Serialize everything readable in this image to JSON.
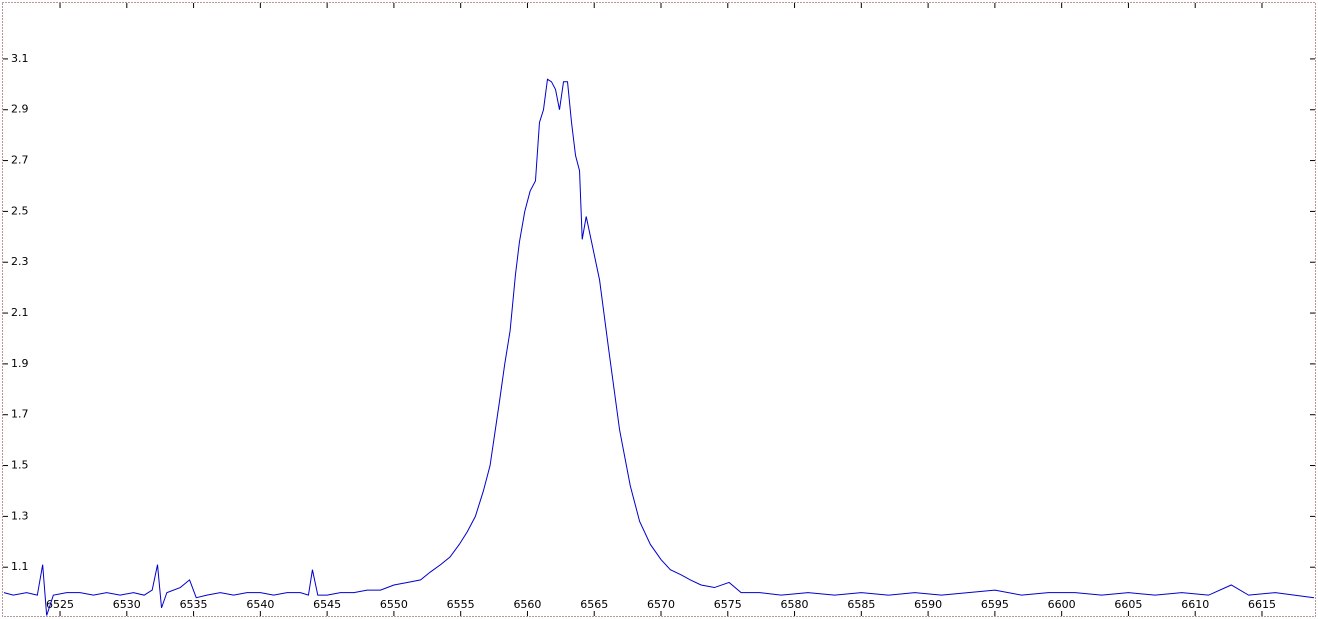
{
  "chart_data": {
    "type": "line",
    "x": [
      6520.8,
      6521.5,
      6522.5,
      6523.3,
      6523.7,
      6524.0,
      6524.5,
      6525.5,
      6526.5,
      6527.5,
      6528.5,
      6529.5,
      6530.5,
      6531.3,
      6531.9,
      6532.3,
      6532.6,
      6533.0,
      6534.0,
      6534.7,
      6535.2,
      6536,
      6537,
      6538,
      6539,
      6540,
      6541,
      6542,
      6543,
      6543.6,
      6543.9,
      6544.3,
      6545,
      6546,
      6547,
      6548,
      6549,
      6550,
      6551,
      6552,
      6552.7,
      6553.5,
      6554.2,
      6554.9,
      6555.5,
      6556.1,
      6556.7,
      6557.2,
      6557.9,
      6558.3,
      6558.7,
      6559.1,
      6559.4,
      6559.8,
      6560.2,
      6560.6,
      6560.9,
      6561.2,
      6561.5,
      6561.8,
      6562.1,
      6562.4,
      6562.7,
      6563.0,
      6563.3,
      6563.6,
      6563.9,
      6564.1,
      6564.4,
      6564.8,
      6565.4,
      6566.1,
      6566.9,
      6567.7,
      6568.4,
      6569.2,
      6570.0,
      6570.7,
      6571.5,
      6572.2,
      6573,
      6574,
      6575.1,
      6576,
      6577.4,
      6579,
      6581,
      6583,
      6585,
      6587,
      6589,
      6591,
      6593,
      6595,
      6597,
      6599,
      6601,
      6603,
      6605,
      6607,
      6609,
      6611,
      6612.7,
      6614,
      6616,
      6618.9
    ],
    "series": [
      {
        "color": "#0000cc",
        "values": [
          1.0,
          0.99,
          1.0,
          0.99,
          1.11,
          0.91,
          0.99,
          1.0,
          1.0,
          0.99,
          1.0,
          0.99,
          1.0,
          0.99,
          1.01,
          1.11,
          0.94,
          1.0,
          1.02,
          1.05,
          0.98,
          0.99,
          1.0,
          0.99,
          1.0,
          1.0,
          0.99,
          1.0,
          1.0,
          0.99,
          1.09,
          0.99,
          0.99,
          1.0,
          1.0,
          1.01,
          1.01,
          1.03,
          1.04,
          1.05,
          1.08,
          1.11,
          1.14,
          1.19,
          1.24,
          1.3,
          1.4,
          1.5,
          1.75,
          1.9,
          2.03,
          2.25,
          2.38,
          2.5,
          2.58,
          2.62,
          2.85,
          2.9,
          3.02,
          3.01,
          2.98,
          2.9,
          3.01,
          3.01,
          2.85,
          2.72,
          2.66,
          2.39,
          2.48,
          2.38,
          2.23,
          1.95,
          1.64,
          1.42,
          1.28,
          1.19,
          1.13,
          1.09,
          1.07,
          1.05,
          1.03,
          1.02,
          1.04,
          1.0,
          1.0,
          0.99,
          1.0,
          0.99,
          1.0,
          0.99,
          1.0,
          0.99,
          1.0,
          1.01,
          0.99,
          1.0,
          1.0,
          0.99,
          1.0,
          0.99,
          1.0,
          0.99,
          1.03,
          0.99,
          1.0,
          0.98
        ]
      }
    ],
    "xlim": [
      6520.73,
      6618.97
    ],
    "ylim": [
      0.908,
      3.32
    ],
    "xticks": [
      6525,
      6530,
      6535,
      6540,
      6545,
      6550,
      6555,
      6560,
      6565,
      6570,
      6575,
      6580,
      6585,
      6590,
      6595,
      6600,
      6605,
      6610,
      6615
    ],
    "yticks": [
      1.1,
      1.3,
      1.5,
      1.7,
      1.9,
      2.1,
      2.3,
      2.5,
      2.7,
      2.9,
      3.1
    ]
  }
}
